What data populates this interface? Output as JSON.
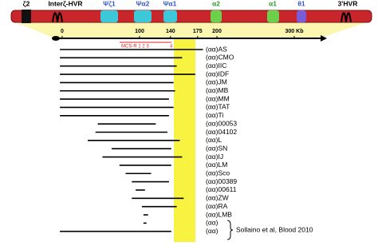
{
  "genes": [
    {
      "label": "ζ2",
      "color": "#000000"
    },
    {
      "label": "Interζ-HVR",
      "color": "#000000"
    },
    {
      "label": "Ψζ1",
      "color": "#3355cc"
    },
    {
      "label": "Ψα2",
      "color": "#3355cc"
    },
    {
      "label": "Ψα1",
      "color": "#3355cc"
    },
    {
      "label": "α2",
      "color": "#2a9a2a"
    },
    {
      "label": "α1",
      "color": "#2a9a2a"
    },
    {
      "label": "θ1",
      "color": "#3355cc"
    },
    {
      "label": "3'HVR",
      "color": "#000000"
    }
  ],
  "scale": {
    "ticks": [
      {
        "value": 0,
        "label": "0"
      },
      {
        "value": 100,
        "label": "100"
      },
      {
        "value": 140,
        "label": "140"
      },
      {
        "value": 175,
        "label": "175"
      },
      {
        "value": 200,
        "label": "200"
      },
      {
        "value": 300,
        "label": "300 Kb"
      }
    ],
    "mcs_label": "MCS-R 1 2 3",
    "mcs4_label": "4"
  },
  "deletions": [
    {
      "name": "(αα)AS",
      "start": -3,
      "end": 182
    },
    {
      "name": "(αα)CMO",
      "start": -3,
      "end": 155
    },
    {
      "name": "(αα)IIC",
      "start": -3,
      "end": 148
    },
    {
      "name": "(αα)IDF",
      "start": -3,
      "end": 172
    },
    {
      "name": "(αα)JM",
      "start": -3,
      "end": 144
    },
    {
      "name": "(αα)MB",
      "start": -3,
      "end": 146
    },
    {
      "name": "(αα)MM",
      "start": -3,
      "end": 138
    },
    {
      "name": "(αα)TAT",
      "start": -3,
      "end": 144
    },
    {
      "name": "(αα)Ti",
      "start": -3,
      "end": 138
    },
    {
      "name": "(αα)00053",
      "start": 46,
      "end": 121
    },
    {
      "name": "(αα)04102",
      "start": 43,
      "end": 136
    },
    {
      "name": "(αα)L",
      "start": 33,
      "end": 152
    },
    {
      "name": "(αα)SN",
      "start": 64,
      "end": 141
    },
    {
      "name": "(αα)IJ",
      "start": 52,
      "end": 155
    },
    {
      "name": "(αα)LM",
      "start": 74,
      "end": 141
    },
    {
      "name": "(αα)Sco",
      "start": 82,
      "end": 115
    },
    {
      "name": "(αα)00389",
      "start": 90,
      "end": 138
    },
    {
      "name": "(αα)00611",
      "start": 95,
      "end": 107
    },
    {
      "name": "(αα)ZW",
      "start": 90,
      "end": 157
    },
    {
      "name": "(αα)RA",
      "start": 103,
      "end": 148
    },
    {
      "name": "(αα)LMB",
      "start": 105,
      "end": 111
    },
    {
      "name": "(αα)",
      "start": 105,
      "end": 109
    },
    {
      "name": "(αα)",
      "start": -3,
      "end": 141
    }
  ],
  "citation": "Sollaino et al, Blood 2010"
}
